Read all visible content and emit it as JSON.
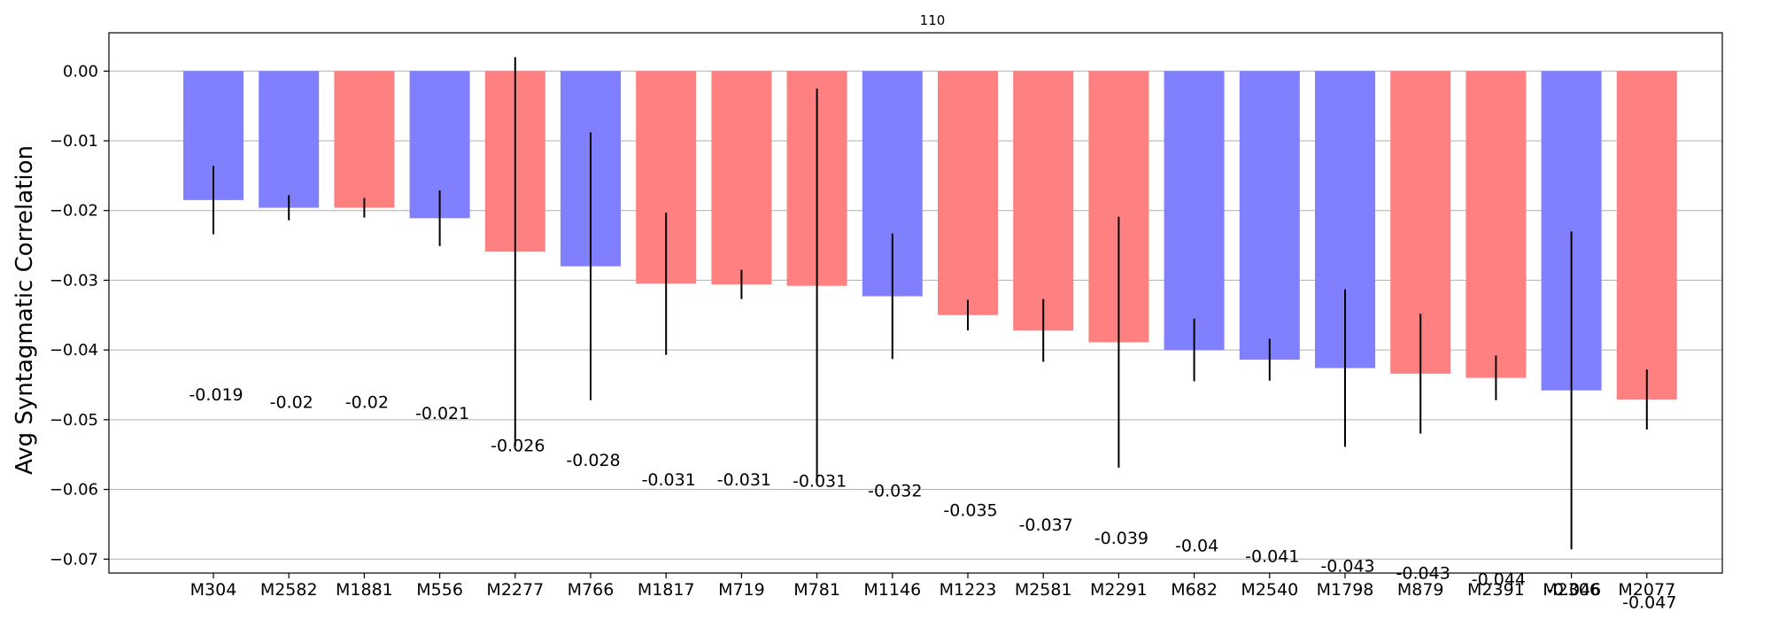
{
  "chart_data": {
    "type": "bar",
    "title": "110",
    "xlabel": "",
    "ylabel": "Avg Syntagmatic Correlation",
    "ylim": [
      -0.072,
      0.0055
    ],
    "yticks": [
      0.0,
      -0.01,
      -0.02,
      -0.03,
      -0.04,
      -0.05,
      -0.06,
      -0.07
    ],
    "ytick_labels": [
      "0.00",
      "−0.01",
      "−0.02",
      "−0.03",
      "−0.04",
      "−0.05",
      "−0.06",
      "−0.07"
    ],
    "grid": "horizontal",
    "colors": {
      "blue": "#8080ff",
      "red": "#ff8080",
      "error": "#000000",
      "grid": "#b0b0b0"
    },
    "categories": [
      "M304",
      "M2582",
      "M1881",
      "M556",
      "M2277",
      "M766",
      "M1817",
      "M719",
      "M781",
      "M1146",
      "M1223",
      "M2581",
      "M2291",
      "M682",
      "M2540",
      "M1798",
      "M879",
      "M2391",
      "M2306",
      "M2077"
    ],
    "values": [
      -0.0185,
      -0.0196,
      -0.0196,
      -0.0211,
      -0.0259,
      -0.028,
      -0.0305,
      -0.0306,
      -0.0308,
      -0.0323,
      -0.035,
      -0.0372,
      -0.0389,
      -0.04,
      -0.0414,
      -0.0426,
      -0.0434,
      -0.044,
      -0.0458,
      -0.0471
    ],
    "errors": [
      0.0049,
      0.0018,
      0.0014,
      0.004,
      0.0279,
      0.0192,
      0.0102,
      0.0021,
      0.0283,
      0.009,
      0.0022,
      0.0045,
      0.018,
      0.0045,
      0.003,
      0.0113,
      0.0086,
      0.0032,
      0.0228,
      0.0043
    ],
    "bar_colors": [
      "blue",
      "blue",
      "red",
      "blue",
      "red",
      "blue",
      "red",
      "red",
      "red",
      "blue",
      "red",
      "red",
      "red",
      "blue",
      "blue",
      "blue",
      "red",
      "red",
      "blue",
      "red"
    ],
    "data_labels": [
      "-0.019",
      "-0.02",
      "-0.02",
      "-0.021",
      "-0.026",
      "-0.028",
      "-0.031",
      "-0.031",
      "-0.031",
      "-0.032",
      "-0.035",
      "-0.037",
      "-0.039",
      "-0.04",
      "-0.041",
      "-0.043",
      "-0.043",
      "-0.044",
      "-0.046",
      "-0.047"
    ],
    "data_label_y": [
      -0.0472,
      -0.0483,
      -0.0483,
      -0.0499,
      -0.0545,
      -0.0566,
      -0.0594,
      -0.0594,
      -0.0596,
      -0.061,
      -0.0638,
      -0.0659,
      -0.0678,
      -0.0689,
      -0.0704,
      -0.0718,
      -0.0728,
      -0.0737,
      -0.0752,
      -0.077
    ]
  }
}
